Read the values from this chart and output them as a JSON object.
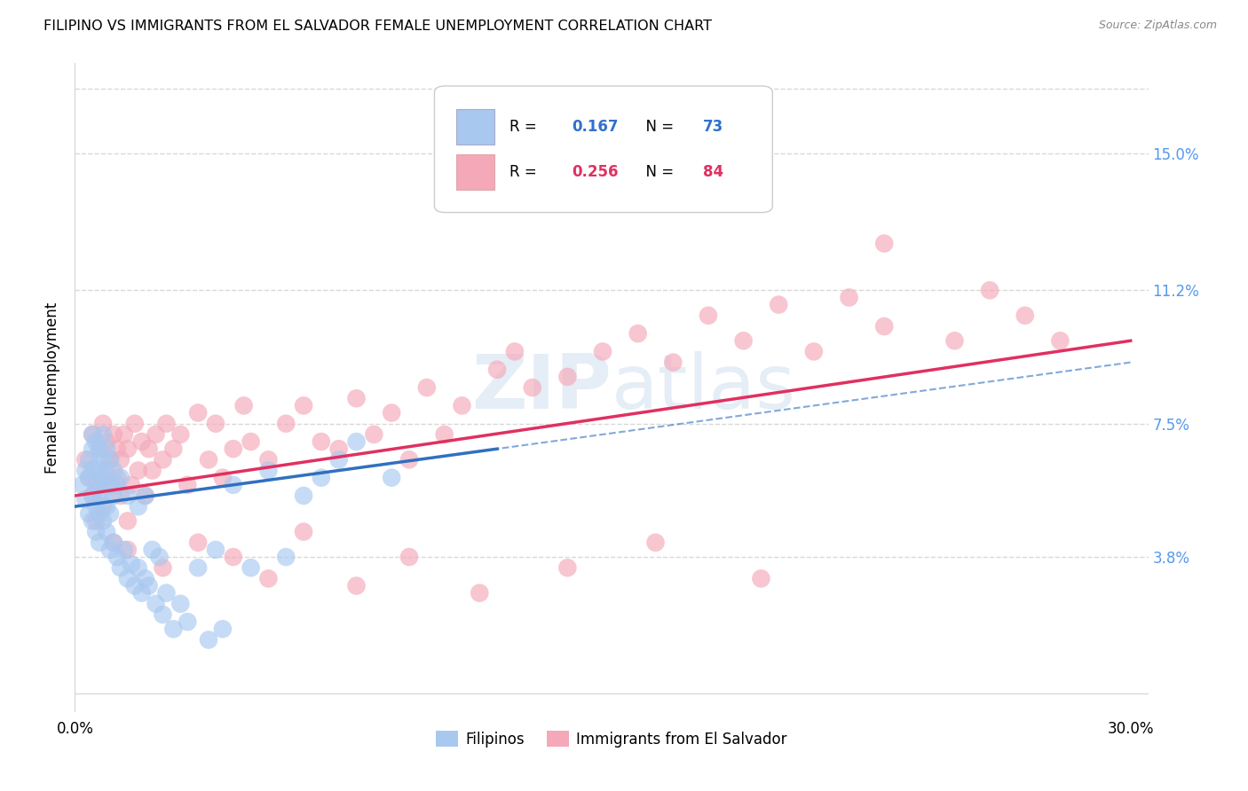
{
  "title": "FILIPINO VS IMMIGRANTS FROM EL SALVADOR FEMALE UNEMPLOYMENT CORRELATION CHART",
  "source": "Source: ZipAtlas.com",
  "ylabel": "Female Unemployment",
  "right_yticks": [
    "15.0%",
    "11.2%",
    "7.5%",
    "3.8%"
  ],
  "right_ytick_vals": [
    0.15,
    0.112,
    0.075,
    0.038
  ],
  "legend_label1": "Filipinos",
  "legend_label2": "Immigrants from El Salvador",
  "color_filipino": "#a8c8f0",
  "color_salvador": "#f4a8b8",
  "color_line_filipino": "#3070c0",
  "color_line_salvador": "#e03060",
  "background_color": "#ffffff",
  "grid_color": "#d8d8d8",
  "xlim": [
    0.0,
    0.305
  ],
  "ylim": [
    -0.005,
    0.175
  ],
  "watermark": "ZIPatlas",
  "fil_line_x0": 0.0,
  "fil_line_y0": 0.052,
  "fil_line_x1": 0.12,
  "fil_line_y1": 0.068,
  "sal_line_x0": 0.0,
  "sal_line_y0": 0.055,
  "sal_line_x1": 0.3,
  "sal_line_y1": 0.098,
  "filipino_x": [
    0.002,
    0.003,
    0.003,
    0.004,
    0.004,
    0.004,
    0.005,
    0.005,
    0.005,
    0.005,
    0.005,
    0.006,
    0.006,
    0.006,
    0.006,
    0.006,
    0.007,
    0.007,
    0.007,
    0.007,
    0.007,
    0.008,
    0.008,
    0.008,
    0.008,
    0.008,
    0.009,
    0.009,
    0.009,
    0.009,
    0.01,
    0.01,
    0.01,
    0.01,
    0.011,
    0.011,
    0.011,
    0.012,
    0.012,
    0.013,
    0.013,
    0.014,
    0.015,
    0.015,
    0.016,
    0.017,
    0.018,
    0.018,
    0.019,
    0.02,
    0.02,
    0.021,
    0.022,
    0.023,
    0.024,
    0.025,
    0.026,
    0.028,
    0.03,
    0.032,
    0.035,
    0.038,
    0.04,
    0.042,
    0.045,
    0.05,
    0.055,
    0.06,
    0.065,
    0.07,
    0.075,
    0.08,
    0.09
  ],
  "filipino_y": [
    0.058,
    0.054,
    0.062,
    0.05,
    0.06,
    0.065,
    0.048,
    0.055,
    0.062,
    0.068,
    0.072,
    0.045,
    0.052,
    0.058,
    0.063,
    0.07,
    0.042,
    0.05,
    0.056,
    0.062,
    0.068,
    0.048,
    0.055,
    0.06,
    0.065,
    0.072,
    0.045,
    0.052,
    0.06,
    0.068,
    0.04,
    0.05,
    0.058,
    0.065,
    0.042,
    0.055,
    0.062,
    0.038,
    0.058,
    0.035,
    0.06,
    0.04,
    0.032,
    0.055,
    0.036,
    0.03,
    0.035,
    0.052,
    0.028,
    0.032,
    0.055,
    0.03,
    0.04,
    0.025,
    0.038,
    0.022,
    0.028,
    0.018,
    0.025,
    0.02,
    0.035,
    0.015,
    0.04,
    0.018,
    0.058,
    0.035,
    0.062,
    0.038,
    0.055,
    0.06,
    0.065,
    0.07,
    0.06
  ],
  "salvador_x": [
    0.003,
    0.004,
    0.005,
    0.005,
    0.006,
    0.007,
    0.007,
    0.008,
    0.008,
    0.009,
    0.009,
    0.01,
    0.01,
    0.011,
    0.011,
    0.012,
    0.012,
    0.013,
    0.013,
    0.014,
    0.015,
    0.015,
    0.016,
    0.017,
    0.018,
    0.019,
    0.02,
    0.021,
    0.022,
    0.023,
    0.025,
    0.026,
    0.028,
    0.03,
    0.032,
    0.035,
    0.038,
    0.04,
    0.042,
    0.045,
    0.048,
    0.05,
    0.055,
    0.06,
    0.065,
    0.07,
    0.075,
    0.08,
    0.085,
    0.09,
    0.095,
    0.1,
    0.105,
    0.11,
    0.12,
    0.125,
    0.13,
    0.14,
    0.15,
    0.16,
    0.17,
    0.18,
    0.19,
    0.2,
    0.21,
    0.22,
    0.23,
    0.25,
    0.26,
    0.27,
    0.28,
    0.015,
    0.025,
    0.035,
    0.045,
    0.055,
    0.065,
    0.08,
    0.095,
    0.115,
    0.14,
    0.165,
    0.195,
    0.23
  ],
  "salvador_y": [
    0.065,
    0.06,
    0.055,
    0.072,
    0.048,
    0.068,
    0.058,
    0.052,
    0.075,
    0.062,
    0.07,
    0.058,
    0.065,
    0.042,
    0.072,
    0.06,
    0.068,
    0.055,
    0.065,
    0.072,
    0.048,
    0.068,
    0.058,
    0.075,
    0.062,
    0.07,
    0.055,
    0.068,
    0.062,
    0.072,
    0.065,
    0.075,
    0.068,
    0.072,
    0.058,
    0.078,
    0.065,
    0.075,
    0.06,
    0.068,
    0.08,
    0.07,
    0.065,
    0.075,
    0.08,
    0.07,
    0.068,
    0.082,
    0.072,
    0.078,
    0.065,
    0.085,
    0.072,
    0.08,
    0.09,
    0.095,
    0.085,
    0.088,
    0.095,
    0.1,
    0.092,
    0.105,
    0.098,
    0.108,
    0.095,
    0.11,
    0.102,
    0.098,
    0.112,
    0.105,
    0.098,
    0.04,
    0.035,
    0.042,
    0.038,
    0.032,
    0.045,
    0.03,
    0.038,
    0.028,
    0.035,
    0.042,
    0.032,
    0.125
  ]
}
